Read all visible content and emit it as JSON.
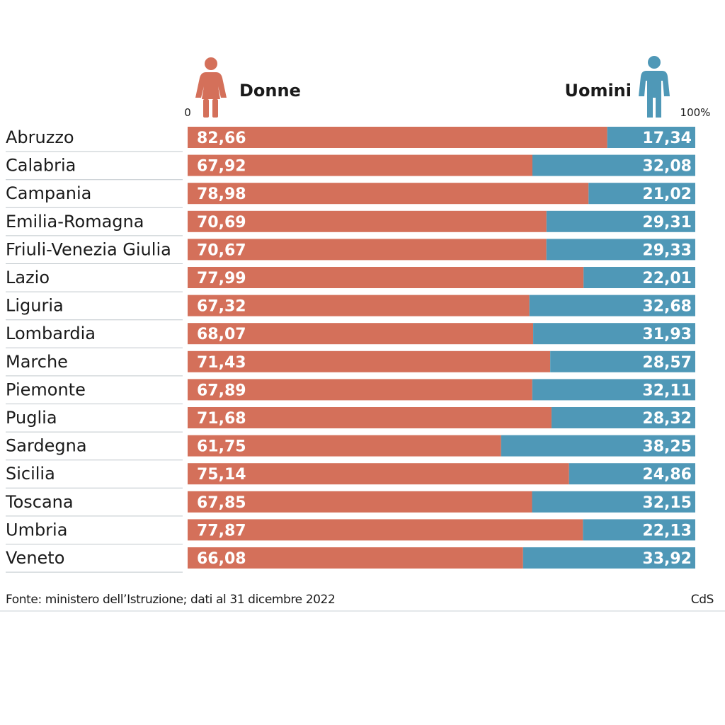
{
  "colors": {
    "donne": "#d4705a",
    "uomini": "#4f98b7",
    "separator": "#bfc6cb"
  },
  "legend": {
    "donne_label": "Donne",
    "uomini_label": "Uomini",
    "donne_icon": "woman-icon",
    "uomini_icon": "man-icon"
  },
  "axis": {
    "min_label": "0",
    "max_label": "100%"
  },
  "footer": {
    "source": "Fonte: ministero dell’Istruzione; dati al 31 dicembre 2022",
    "credit": "CdS"
  },
  "chart_data": {
    "type": "bar",
    "stacked": true,
    "orientation": "horizontal",
    "xlim": [
      0,
      100
    ],
    "categories": [
      "Abruzzo",
      "Calabria",
      "Campania",
      "Emilia-Romagna",
      "Friuli-Venezia Giulia",
      "Lazio",
      "Liguria",
      "Lombardia",
      "Marche",
      "Piemonte",
      "Puglia",
      "Sardegna",
      "Sicilia",
      "Toscana",
      "Umbria",
      "Veneto"
    ],
    "series": [
      {
        "name": "Donne",
        "values": [
          82.66,
          67.92,
          78.98,
          70.69,
          70.67,
          77.99,
          67.32,
          68.07,
          71.43,
          67.89,
          71.68,
          61.75,
          75.14,
          67.85,
          77.87,
          66.08
        ],
        "labels": [
          "82,66",
          "67,92",
          "78,98",
          "70,69",
          "70,67",
          "77,99",
          "67,32",
          "68,07",
          "71,43",
          "67,89",
          "71,68",
          "61,75",
          "75,14",
          "67,85",
          "77,87",
          "66,08"
        ]
      },
      {
        "name": "Uomini",
        "values": [
          17.34,
          32.08,
          21.02,
          29.31,
          29.33,
          22.01,
          32.68,
          31.93,
          28.57,
          32.11,
          28.32,
          38.25,
          24.86,
          32.15,
          22.13,
          33.92
        ],
        "labels": [
          "17,34",
          "32,08",
          "21,02",
          "29,31",
          "29,33",
          "22,01",
          "32,68",
          "31,93",
          "28,57",
          "32,11",
          "28,32",
          "38,25",
          "24,86",
          "32,15",
          "22,13",
          "33,92"
        ]
      }
    ]
  }
}
